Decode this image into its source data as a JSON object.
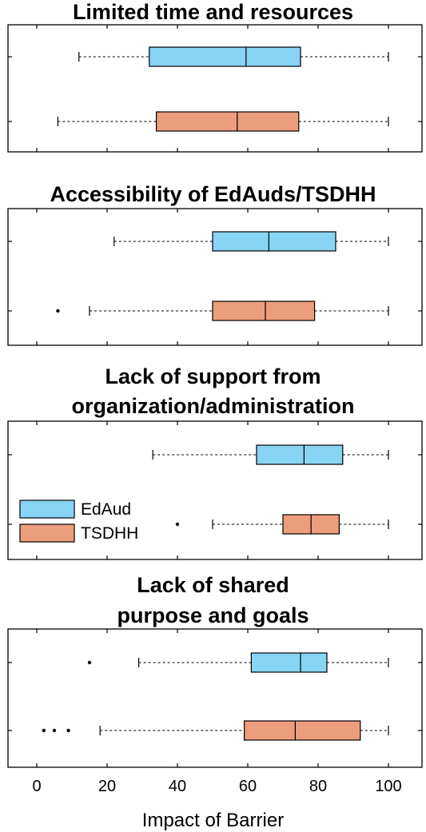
{
  "chart_data": {
    "type": "boxplot",
    "xlabel": "Impact of Barrier",
    "xlim": [
      0,
      100
    ],
    "xticks": [
      0,
      20,
      40,
      60,
      80,
      100
    ],
    "grid": false,
    "legend": {
      "placement": "inside third panel, left",
      "entries": [
        {
          "name": "EdAud",
          "color": "#87d4f5"
        },
        {
          "name": "TSDHH",
          "color": "#ec9d7b"
        }
      ]
    },
    "panels": [
      {
        "title_lines": [
          "Limited time and resources"
        ],
        "series": [
          {
            "name": "EdAud",
            "whisker_low": 12,
            "q1": 32,
            "median": 59.5,
            "q3": 75,
            "whisker_high": 100,
            "outliers": []
          },
          {
            "name": "TSDHH",
            "whisker_low": 6,
            "q1": 34,
            "median": 57,
            "q3": 74.5,
            "whisker_high": 100,
            "outliers": []
          }
        ]
      },
      {
        "title_lines": [
          "Accessibility of EdAuds/TSDHH"
        ],
        "series": [
          {
            "name": "EdAud",
            "whisker_low": 22,
            "q1": 50,
            "median": 66,
            "q3": 85,
            "whisker_high": 100,
            "outliers": []
          },
          {
            "name": "TSDHH",
            "whisker_low": 15,
            "q1": 50,
            "median": 65,
            "q3": 79,
            "whisker_high": 100,
            "outliers": [
              6
            ]
          }
        ]
      },
      {
        "title_lines": [
          "Lack of support from",
          "organization/administration"
        ],
        "series": [
          {
            "name": "EdAud",
            "whisker_low": 33,
            "q1": 62.5,
            "median": 76,
            "q3": 87,
            "whisker_high": 100,
            "outliers": []
          },
          {
            "name": "TSDHH",
            "whisker_low": 50,
            "q1": 70,
            "median": 78,
            "q3": 86,
            "whisker_high": 100,
            "outliers": [
              40
            ]
          }
        ]
      },
      {
        "title_lines": [
          "Lack of shared",
          "purpose and goals"
        ],
        "series": [
          {
            "name": "EdAud",
            "whisker_low": 29,
            "q1": 61,
            "median": 75,
            "q3": 82.5,
            "whisker_high": 100,
            "outliers": [
              15
            ]
          },
          {
            "name": "TSDHH",
            "whisker_low": 18,
            "q1": 59,
            "median": 73.5,
            "q3": 92,
            "whisker_high": 100,
            "outliers": [
              2,
              5,
              9
            ]
          }
        ]
      }
    ]
  }
}
